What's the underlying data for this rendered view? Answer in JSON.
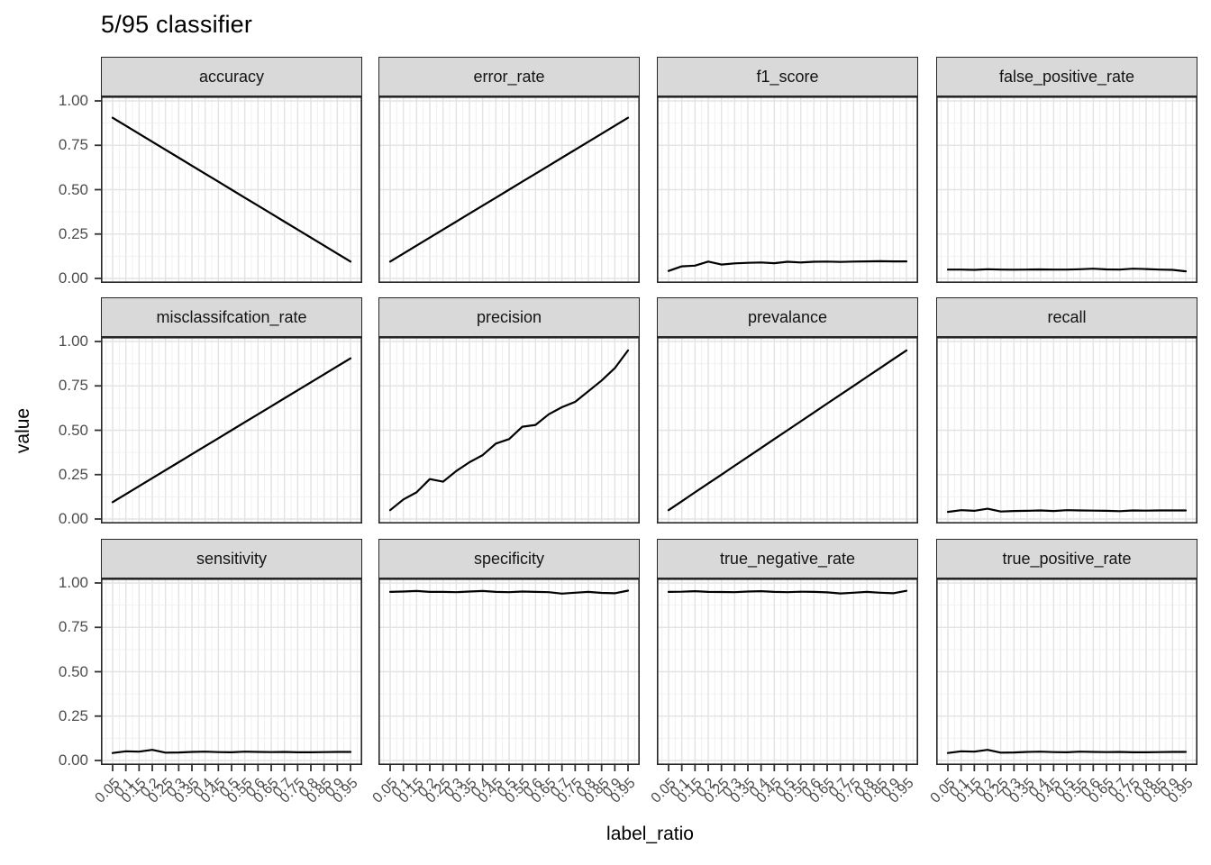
{
  "title": "5/95 classifier",
  "axes": {
    "x_label": "label_ratio",
    "y_label": "value",
    "x_ticks": [
      "0.05",
      "0.1",
      "0.15",
      "0.2",
      "0.25",
      "0.3",
      "0.35",
      "0.4",
      "0.45",
      "0.5",
      "0.55",
      "0.6",
      "0.65",
      "0.7",
      "0.75",
      "0.8",
      "0.85",
      "0.9",
      "0.95"
    ],
    "y_ticks": [
      "0.00",
      "0.25",
      "0.50",
      "0.75",
      "1.00"
    ]
  },
  "colors": {
    "line": "#000000",
    "strip_background": "#d9d9d9",
    "panel_border": "#262626",
    "grid_major": "#e4e4e4",
    "grid_minor": "#f1f1f1",
    "tick_mark": "#333333",
    "tick_text": "#4d4d4d"
  },
  "chart_data": {
    "type": "line",
    "title": "5/95 classifier",
    "xlabel": "label_ratio",
    "ylabel": "value",
    "ylim": [
      0,
      1
    ],
    "grid": true,
    "legend": "none",
    "layout": "facet-grid 3 rows x 4 cols, shared axes",
    "x": [
      0.05,
      0.1,
      0.15,
      0.2,
      0.25,
      0.3,
      0.35,
      0.4,
      0.45,
      0.5,
      0.55,
      0.6,
      0.65,
      0.7,
      0.75,
      0.8,
      0.85,
      0.9,
      0.95
    ],
    "facets": [
      {
        "label": "accuracy",
        "values": [
          0.905,
          0.86,
          0.815,
          0.77,
          0.725,
          0.68,
          0.635,
          0.59,
          0.545,
          0.5,
          0.455,
          0.41,
          0.365,
          0.32,
          0.275,
          0.23,
          0.185,
          0.14,
          0.095
        ]
      },
      {
        "label": "error_rate",
        "values": [
          0.095,
          0.14,
          0.185,
          0.23,
          0.275,
          0.32,
          0.365,
          0.41,
          0.455,
          0.5,
          0.545,
          0.59,
          0.635,
          0.68,
          0.725,
          0.77,
          0.815,
          0.86,
          0.905
        ]
      },
      {
        "label": "f1_score",
        "values": [
          0.042,
          0.068,
          0.072,
          0.095,
          0.078,
          0.085,
          0.088,
          0.09,
          0.086,
          0.094,
          0.09,
          0.094,
          0.095,
          0.093,
          0.095,
          0.096,
          0.097,
          0.096,
          0.096
        ]
      },
      {
        "label": "false_positive_rate",
        "values": [
          0.05,
          0.05,
          0.048,
          0.052,
          0.05,
          0.049,
          0.05,
          0.051,
          0.05,
          0.05,
          0.052,
          0.055,
          0.051,
          0.05,
          0.055,
          0.053,
          0.05,
          0.048,
          0.04
        ]
      },
      {
        "label": "misclassifcation_rate",
        "values": [
          0.095,
          0.14,
          0.185,
          0.23,
          0.275,
          0.32,
          0.365,
          0.41,
          0.455,
          0.5,
          0.545,
          0.59,
          0.635,
          0.68,
          0.725,
          0.77,
          0.815,
          0.86,
          0.905
        ]
      },
      {
        "label": "precision",
        "values": [
          0.05,
          0.11,
          0.15,
          0.225,
          0.21,
          0.27,
          0.32,
          0.36,
          0.425,
          0.45,
          0.52,
          0.53,
          0.59,
          0.63,
          0.66,
          0.72,
          0.78,
          0.85,
          0.95
        ]
      },
      {
        "label": "prevalance",
        "values": [
          0.05,
          0.1,
          0.15,
          0.2,
          0.25,
          0.3,
          0.35,
          0.4,
          0.45,
          0.5,
          0.55,
          0.6,
          0.65,
          0.7,
          0.75,
          0.8,
          0.85,
          0.9,
          0.95
        ]
      },
      {
        "label": "recall",
        "values": [
          0.04,
          0.05,
          0.046,
          0.058,
          0.042,
          0.045,
          0.046,
          0.048,
          0.045,
          0.05,
          0.048,
          0.047,
          0.046,
          0.044,
          0.048,
          0.047,
          0.048,
          0.048,
          0.048
        ]
      },
      {
        "label": "sensitivity",
        "values": [
          0.042,
          0.052,
          0.05,
          0.06,
          0.044,
          0.045,
          0.048,
          0.05,
          0.047,
          0.046,
          0.05,
          0.048,
          0.047,
          0.048,
          0.046,
          0.046,
          0.047,
          0.048,
          0.048
        ]
      },
      {
        "label": "specificity",
        "values": [
          0.95,
          0.952,
          0.955,
          0.95,
          0.95,
          0.948,
          0.952,
          0.955,
          0.95,
          0.948,
          0.952,
          0.95,
          0.948,
          0.94,
          0.945,
          0.95,
          0.944,
          0.942,
          0.957
        ]
      },
      {
        "label": "true_negative_rate",
        "values": [
          0.95,
          0.951,
          0.954,
          0.95,
          0.949,
          0.948,
          0.952,
          0.954,
          0.95,
          0.948,
          0.951,
          0.95,
          0.947,
          0.941,
          0.945,
          0.95,
          0.945,
          0.942,
          0.956
        ]
      },
      {
        "label": "true_positive_rate",
        "values": [
          0.042,
          0.052,
          0.05,
          0.06,
          0.044,
          0.045,
          0.048,
          0.05,
          0.047,
          0.046,
          0.05,
          0.048,
          0.047,
          0.048,
          0.046,
          0.046,
          0.047,
          0.048,
          0.048
        ]
      }
    ]
  }
}
